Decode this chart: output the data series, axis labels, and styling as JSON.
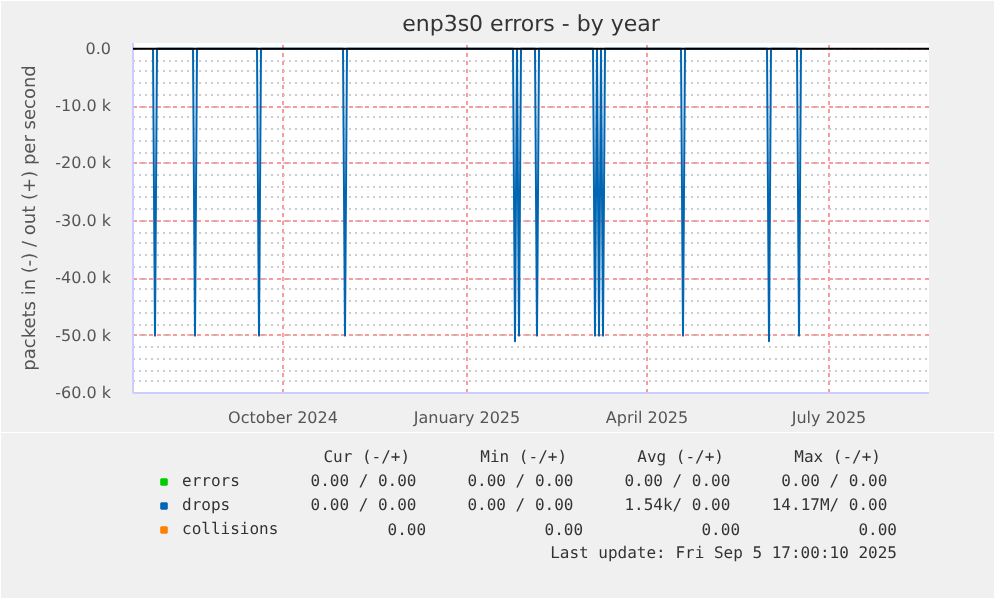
{
  "chart_data": {
    "type": "line",
    "title": "enp3s0 errors - by year",
    "ylabel": "packets in (-) / out (+) per second",
    "xlim": [
      "2024-08-02",
      "2025-09-04"
    ],
    "xticks": [
      {
        "value": "2024-10-16",
        "label": "October 2024"
      },
      {
        "value": "2025-01-16",
        "label": "January 2025"
      },
      {
        "value": "2025-04-16",
        "label": "April 2025"
      },
      {
        "value": "2025-07-16",
        "label": "July 2025"
      }
    ],
    "ylim": [
      -60000,
      1000
    ],
    "yticks": [
      {
        "value": 0,
        "label": "0.0"
      },
      {
        "value": -10000,
        "label": "-10.0 k"
      },
      {
        "value": -20000,
        "label": "-20.0 k"
      },
      {
        "value": -30000,
        "label": "-30.0 k"
      },
      {
        "value": -40000,
        "label": "-40.0 k"
      },
      {
        "value": -50000,
        "label": "-50.0 k"
      },
      {
        "value": -60000,
        "label": "-60.0 k"
      }
    ],
    "grid": true,
    "legend": "bottom left",
    "line_style": "solid",
    "marker": "none",
    "ref_lines": [
      {
        "axis": "y",
        "value": 0,
        "color": "#000000"
      }
    ],
    "series": [
      {
        "name": "errors",
        "color": "#00cc00"
      },
      {
        "name": "drops",
        "color": "#0066b3",
        "x": [
          "2024-08-12",
          "2024-08-13",
          "2024-08-14",
          "2024-09-01",
          "2024-09-02",
          "2024-09-03",
          "2024-10-03",
          "2024-10-04",
          "2024-10-05",
          "2024-11-15",
          "2024-11-16",
          "2024-11-17",
          "2025-02-08",
          "2025-02-09",
          "2025-02-10",
          "2025-02-11",
          "2025-02-12",
          "2025-02-19",
          "2025-02-20",
          "2025-02-21",
          "2025-03-20",
          "2025-03-21",
          "2025-03-22",
          "2025-03-23",
          "2025-03-24",
          "2025-03-25",
          "2025-03-26",
          "2025-05-03",
          "2025-05-04",
          "2025-05-05",
          "2025-06-15",
          "2025-06-16",
          "2025-06-17",
          "2025-06-30",
          "2025-07-01",
          "2025-07-02"
        ],
        "values": [
          0,
          -50000,
          0,
          0,
          -50000,
          0,
          0,
          -50000,
          0,
          0,
          -50000,
          0,
          0,
          -51000,
          0,
          -50000,
          0,
          0,
          -50000,
          0,
          0,
          -50000,
          0,
          -50000,
          0,
          -50000,
          0,
          0,
          -50000,
          0,
          0,
          -51000,
          0,
          0,
          -50000,
          0
        ]
      },
      {
        "name": "collisions",
        "color": "#ff8000"
      }
    ],
    "annotations": [
      "Cur (-/+)",
      "Min (-/+)",
      "Avg (-/+)",
      "Max (-/+)",
      "0.00 /  0.00",
      "0.00 /  0.00",
      "0.00 /  0.00",
      "0.00 /  0.00",
      "0.00 /  0.00",
      "0.00 /  0.00",
      "1.54k/  0.00",
      "14.17M/  0.00",
      "0.00",
      "0.00",
      "0.00",
      "0.00",
      "Last update: Fri Sep  5 17:00:10 2025"
    ]
  }
}
